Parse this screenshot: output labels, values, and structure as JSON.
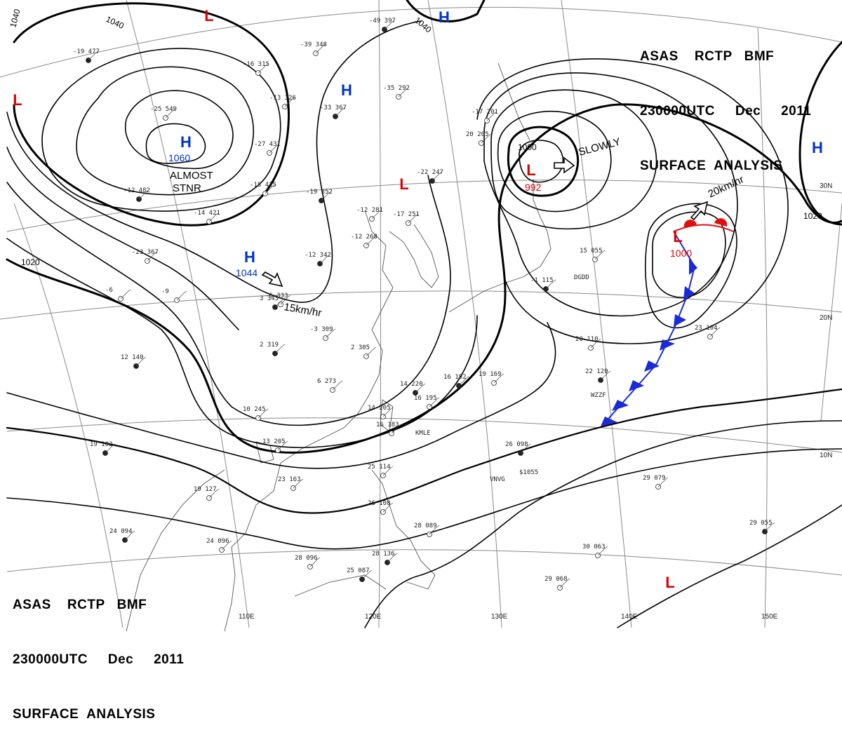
{
  "header": {
    "lines": [
      "ASAS    RCTP   BMF",
      "230000UTC     Dec     2011",
      "SURFACE  ANALYSIS"
    ]
  },
  "colors": {
    "high": "#0033cc",
    "low": "#dd0000",
    "isobar": "#000000",
    "coast": "#555555",
    "grid": "#8a8a8a",
    "cold_front": "#1a2ad6",
    "warm_front": "#e01010"
  },
  "grid": {
    "lon_labels": [
      "110E",
      "120E",
      "130E",
      "140E",
      "150E"
    ],
    "lat_labels": [
      "30N",
      "20N",
      "10N"
    ]
  },
  "isobars": {
    "labels": [
      "1040",
      "1040",
      "1040",
      "1020",
      "1020",
      "1000"
    ]
  },
  "systems": [
    {
      "type": "H",
      "pressure": "1060",
      "note": "ALMOST STNR"
    },
    {
      "type": "H",
      "pressure": "1044",
      "note": "15km/hr"
    },
    {
      "type": "L",
      "pressure": "992",
      "note": "SLOWLY"
    },
    {
      "type": "L",
      "pressure": "1000",
      "note": "20km/hr"
    },
    {
      "type": "H",
      "pressure": "",
      "note": ""
    },
    {
      "type": "H",
      "pressure": "",
      "note": ""
    },
    {
      "type": "H",
      "pressure": "",
      "note": ""
    },
    {
      "type": "L",
      "pressure": "",
      "note": ""
    },
    {
      "type": "L",
      "pressure": "",
      "note": ""
    },
    {
      "type": "L",
      "pressure": "",
      "note": ""
    },
    {
      "type": "L",
      "pressure": "",
      "note": ""
    }
  ],
  "stations": [
    "-19 477",
    "-16 315",
    "-39 348",
    "-49 397",
    "-25 549",
    "-13 326",
    "-33 367",
    "-35 292",
    "-17 201",
    "-12 482",
    "-27 431",
    "-18 415",
    "-19 352",
    "-12 281",
    "-17 251",
    "-22 247",
    "-14 421",
    "-23 367",
    "-12 342",
    "-3 309",
    "-6 333",
    "3 343",
    "-9",
    "-6",
    "2 319",
    "2 305",
    "6 273",
    "12 140",
    "10 245",
    "13 205",
    "19 102",
    "19 127",
    "23 163",
    "24 094",
    "24 096",
    "28 096",
    "25 087",
    "25 114",
    "26 108",
    "28 136",
    "28 089",
    "16 183",
    "14 220",
    "14 205",
    "16 195",
    "16 192",
    "19 169",
    "20 110",
    "22 120",
    "23 104",
    "15 055",
    "26 098",
    "29 079",
    "30 063",
    "29 055",
    "29 068",
    "20 205",
    "-1 115",
    "-12 268",
    "WZZF",
    "VNVG",
    "DGDD",
    "KMLE",
    "$1055"
  ]
}
